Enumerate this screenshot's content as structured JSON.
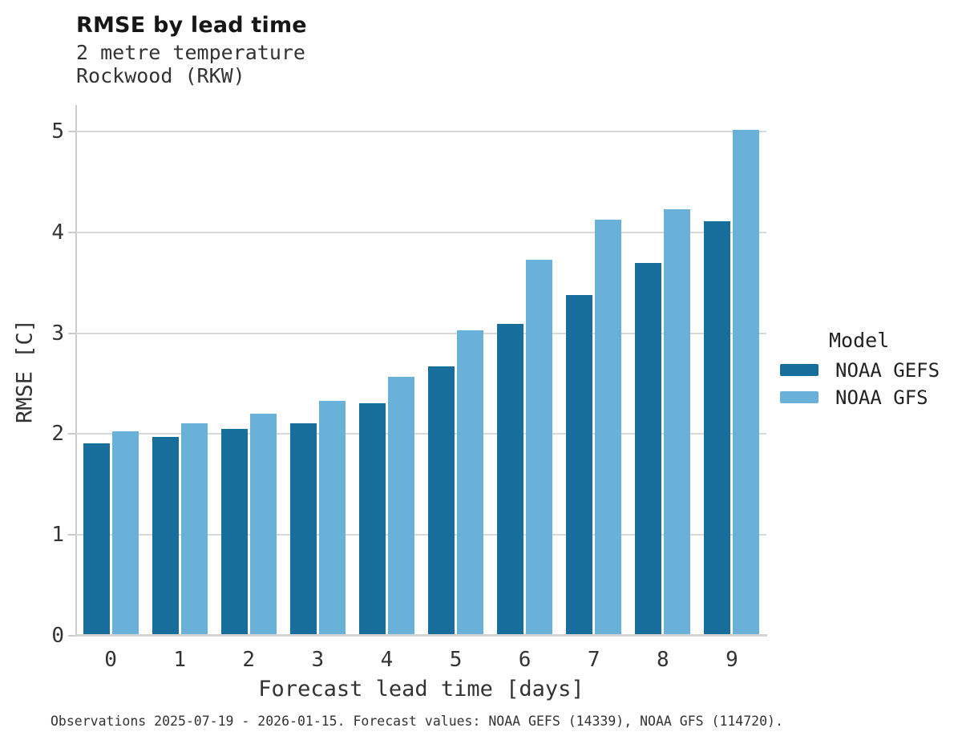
{
  "header": {
    "title": "RMSE by lead time",
    "subtitle_line1": "2 metre temperature",
    "subtitle_line2": "Rockwood (RKW)"
  },
  "chart_data": {
    "type": "bar",
    "title": "RMSE by lead time",
    "subtitle": [
      "2 metre temperature",
      "Rockwood (RKW)"
    ],
    "categories": [
      "0",
      "1",
      "2",
      "3",
      "4",
      "5",
      "6",
      "7",
      "8",
      "9"
    ],
    "series": [
      {
        "name": "NOAA GEFS",
        "color": "#176d9c",
        "values": [
          1.91,
          1.97,
          2.05,
          2.11,
          2.31,
          2.67,
          3.09,
          3.38,
          3.7,
          4.11
        ]
      },
      {
        "name": "NOAA GFS",
        "color": "#69b1d8",
        "values": [
          2.03,
          2.11,
          2.2,
          2.33,
          2.57,
          3.03,
          3.73,
          4.13,
          4.23,
          5.02
        ]
      }
    ],
    "xlabel": "Forecast lead time [days]",
    "ylabel": "RMSE [C]",
    "ylim": [
      0,
      5.24
    ],
    "yticks": [
      0,
      1,
      2,
      3,
      4,
      5
    ],
    "grid": "horizontal",
    "legend_position": "right",
    "legend_title": "Model"
  },
  "footer": {
    "note": "Observations 2025-07-19 - 2026-01-15. Forecast values: NOAA GEFS (14339), NOAA GFS (114720)."
  }
}
